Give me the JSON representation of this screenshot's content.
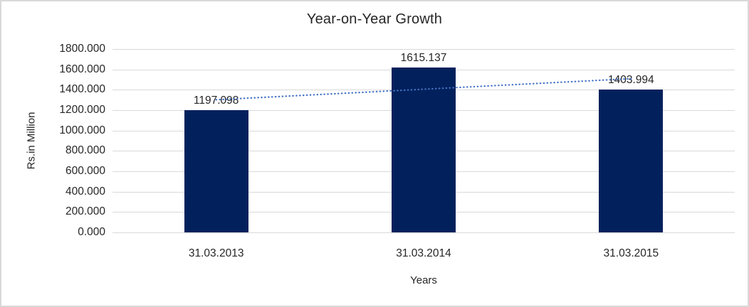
{
  "chart_data": {
    "type": "bar",
    "title": "Year-on-Year Growth",
    "categories": [
      "31.03.2013",
      "31.03.2014",
      "31.03.2015"
    ],
    "values": [
      1197.098,
      1615.137,
      1403.994
    ],
    "data_labels": [
      "1197.098",
      "1615.137",
      "1403.994"
    ],
    "xlabel": "Years",
    "ylabel": "Rs.in Million",
    "ylim": [
      0,
      1800
    ],
    "ytick_step": 200,
    "ytick_labels": [
      "1800.000",
      "1600.000",
      "1400.000",
      "1200.000",
      "1000.000",
      "800.000",
      "600.000",
      "400.000",
      "200.000",
      "0.000"
    ],
    "grid": true,
    "legend": "none",
    "trendline": {
      "type": "linear",
      "style": "dotted"
    },
    "colors": {
      "bar": "#02215C",
      "trendline": "#4472C4",
      "gridline": "#D9D9D9",
      "text": "#262626",
      "frame_border": "#D9D9D9",
      "background": "#FFFFFF"
    }
  }
}
